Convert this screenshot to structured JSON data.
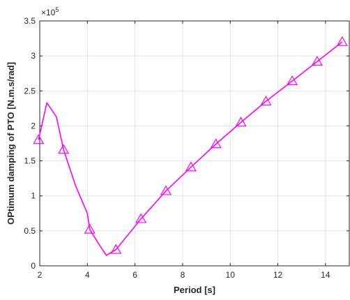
{
  "chart_data": {
    "type": "line",
    "xlabel": "Period [s]",
    "ylabel": "OPtimum damping of PTO [N.m.s/rad]",
    "y_multiplier_label": "×10",
    "y_multiplier_exponent": "5",
    "xlim": [
      2,
      15
    ],
    "ylim": [
      0,
      3.5
    ],
    "xticks": [
      2,
      4,
      6,
      8,
      10,
      12,
      14
    ],
    "yticks": [
      0,
      0.5,
      1,
      1.5,
      2,
      2.5,
      3,
      3.5
    ],
    "xtick_labels": [
      "2",
      "4",
      "6",
      "8",
      "10",
      "12",
      "14"
    ],
    "ytick_labels": [
      "0",
      "0.5",
      "1",
      "1.5",
      "2",
      "2.5",
      "3",
      "3.5"
    ],
    "grid": true,
    "series": [
      {
        "color": "#ff00ff",
        "marker": "triangle",
        "x": [
          1.95,
          2.3,
          2.7,
          3.0,
          3.5,
          4.0,
          4.1,
          4.5,
          4.8,
          5.2,
          6.25,
          7.3,
          8.35,
          9.4,
          10.45,
          11.5,
          12.6,
          13.65,
          14.7
        ],
        "y": [
          1.8,
          2.33,
          2.13,
          1.66,
          1.15,
          0.75,
          0.52,
          0.3,
          0.15,
          0.23,
          0.67,
          1.07,
          1.41,
          1.74,
          2.05,
          2.35,
          2.64,
          2.92,
          3.2
        ],
        "marker_x": [
          1.95,
          3.0,
          4.1,
          5.2,
          6.25,
          7.3,
          8.35,
          9.4,
          10.45,
          11.5,
          12.6,
          13.65,
          14.7
        ],
        "marker_y": [
          1.8,
          1.66,
          0.52,
          0.23,
          0.67,
          1.07,
          1.41,
          1.74,
          2.05,
          2.35,
          2.64,
          2.92,
          3.2
        ]
      }
    ]
  }
}
